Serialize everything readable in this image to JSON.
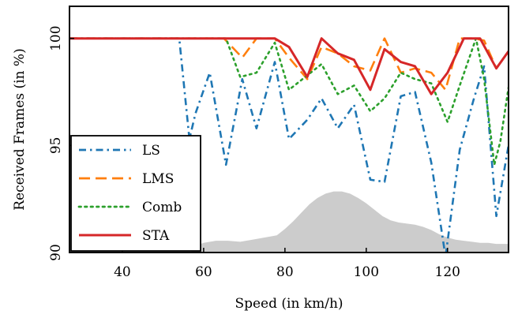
{
  "chart_data": {
    "type": "line",
    "title": "",
    "xlabel": "Speed (in km/h)",
    "ylabel": "Received Frames (in %)",
    "xlim": [
      27,
      135
    ],
    "ylim": [
      90,
      101.5
    ],
    "xticks": [
      "40",
      "60",
      "80",
      "100",
      "120"
    ],
    "yticks": [
      "90",
      "95",
      "100"
    ],
    "grid": false,
    "legend_position": "bottom-left",
    "series": [
      {
        "name": "LS",
        "color": "#1f77b4",
        "dash": "dashdot",
        "x": [
          27,
          54,
          56.5,
          58,
          61.5,
          65.5,
          69.5,
          73,
          77.5,
          81,
          85.5,
          89,
          93,
          97,
          101,
          104.5,
          108.5,
          112,
          116,
          119.5,
          123,
          126.5,
          129,
          132,
          135
        ],
        "y": [
          100,
          100,
          95.3,
          96.5,
          98.4,
          94.1,
          98.1,
          95.8,
          98.9,
          95.3,
          96.2,
          97.2,
          95.8,
          96.9,
          93.4,
          93.3,
          97.3,
          97.5,
          94.2,
          89.8,
          94.8,
          97.2,
          98.7,
          91.7,
          95
        ]
      },
      {
        "name": "LMS",
        "color": "#ff7f0e",
        "dash": "dashed",
        "x": [
          27,
          65,
          69.5,
          73,
          77.5,
          81,
          85.5,
          89,
          93,
          97,
          101,
          104.5,
          108.5,
          112,
          116,
          119.5,
          123,
          126.5,
          129,
          132,
          135
        ],
        "y": [
          100,
          100,
          99.1,
          100,
          100,
          99.1,
          98.1,
          99.6,
          99.3,
          98.7,
          98.5,
          100,
          98.4,
          98.6,
          98.4,
          97.6,
          100,
          100,
          99.9,
          98.6,
          99.4
        ]
      },
      {
        "name": "Comb",
        "color": "#2ca02c",
        "dash": "dotted",
        "x": [
          27,
          65.5,
          69,
          73,
          77.5,
          81,
          85,
          89,
          93,
          97,
          101,
          104.5,
          108.5,
          112,
          116,
          120,
          123,
          127,
          129,
          131.5,
          133,
          135
        ],
        "y": [
          100,
          100,
          98.2,
          98.4,
          99.8,
          97.6,
          98.2,
          98.8,
          97.4,
          97.8,
          96.6,
          97.2,
          98.4,
          98.1,
          97.9,
          96.1,
          97.8,
          100,
          98.1,
          94.1,
          95.2,
          97.7
        ]
      },
      {
        "name": "STA",
        "color": "#d62728",
        "dash": "solid",
        "x": [
          27,
          77.5,
          81,
          85.5,
          89,
          93,
          97,
          101,
          104.5,
          108.5,
          112,
          116,
          120,
          124,
          128,
          132,
          135
        ],
        "y": [
          100,
          100,
          99.6,
          98.2,
          100,
          99.3,
          99,
          97.6,
          99.5,
          98.9,
          98.7,
          97.4,
          98.4,
          100,
          100,
          98.6,
          99.4
        ]
      }
    ],
    "background_area": {
      "color": "#cccccc",
      "x": [
        57,
        60,
        63,
        66,
        69,
        72,
        75,
        78,
        80,
        82,
        84,
        86,
        88,
        90,
        92,
        94,
        96,
        98,
        100,
        102,
        104,
        106,
        108,
        110,
        112,
        114,
        116,
        118,
        120,
        122,
        124,
        126,
        128,
        130,
        132,
        135
      ],
      "y": [
        90.25,
        90.45,
        90.55,
        90.55,
        90.5,
        90.6,
        90.7,
        90.8,
        91.1,
        91.45,
        91.85,
        92.25,
        92.55,
        92.75,
        92.85,
        92.85,
        92.75,
        92.55,
        92.3,
        92,
        91.7,
        91.5,
        91.4,
        91.35,
        91.3,
        91.2,
        91.05,
        90.85,
        90.7,
        90.6,
        90.55,
        90.5,
        90.45,
        90.45,
        90.4,
        90.4
      ]
    }
  }
}
